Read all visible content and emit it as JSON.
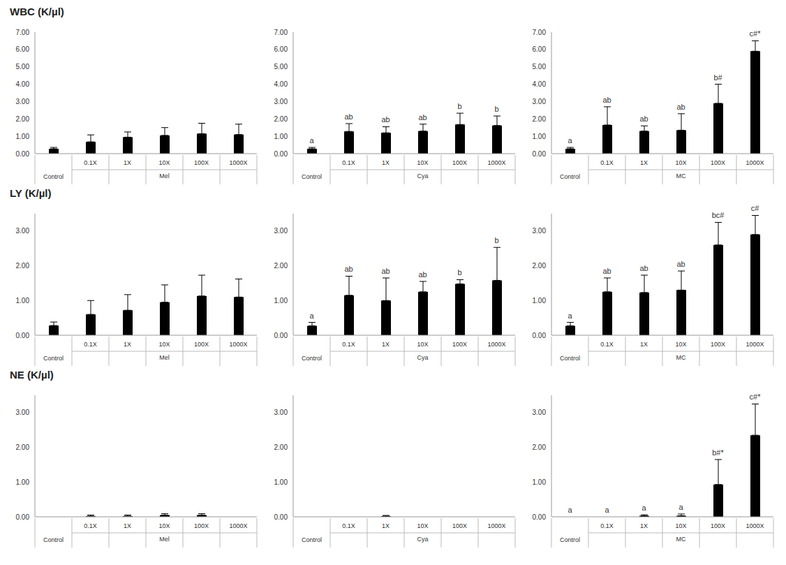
{
  "chart_data": [
    {
      "type": "bar",
      "title": "WBC (K/µl)",
      "xlabel": "Mel",
      "categories": [
        "Control",
        "0.1X",
        "1X",
        "10X",
        "100X",
        "1000X"
      ],
      "values": [
        0.28,
        0.68,
        0.95,
        1.05,
        1.15,
        1.1
      ],
      "errors": [
        0.08,
        0.4,
        0.3,
        0.45,
        0.6,
        0.6
      ],
      "color": "#000000",
      "grid": false,
      "ylim": [
        0,
        7
      ],
      "yticks": [
        {
          "value": 0,
          "label": "0.00"
        },
        {
          "value": 1,
          "label": "1.00"
        },
        {
          "value": 2,
          "label": "2.00"
        },
        {
          "value": 3,
          "label": "3.00"
        },
        {
          "value": 4,
          "label": "4.00"
        },
        {
          "value": 5,
          "label": "5.00"
        },
        {
          "value": 6,
          "label": "6.00"
        },
        {
          "value": 7,
          "label": "7.00"
        }
      ]
    },
    {
      "type": "bar",
      "xlabel": "Cya",
      "categories": [
        "Control",
        "0.1X",
        "1X",
        "10X",
        "100X",
        "1000X"
      ],
      "values": [
        0.28,
        1.28,
        1.2,
        1.3,
        1.68,
        1.62
      ],
      "errors": [
        0.08,
        0.45,
        0.35,
        0.4,
        0.65,
        0.55
      ],
      "annotations": [
        "a",
        "ab",
        "ab",
        "ab",
        "b",
        "b"
      ],
      "color": "#000000",
      "grid": false,
      "ylim": [
        0,
        7
      ],
      "yticks": [
        {
          "value": 0,
          "label": "0.00"
        },
        {
          "value": 1,
          "label": "1.00"
        },
        {
          "value": 2,
          "label": "2.00"
        },
        {
          "value": 3,
          "label": "3.00"
        },
        {
          "value": 4,
          "label": "4.00"
        },
        {
          "value": 5,
          "label": "5.00"
        },
        {
          "value": 6,
          "label": "6.00"
        },
        {
          "value": 7,
          "label": "7.00"
        }
      ]
    },
    {
      "type": "bar",
      "xlabel": "MC",
      "categories": [
        "Control",
        "0.1X",
        "1X",
        "10X",
        "100X",
        "1000X"
      ],
      "values": [
        0.28,
        1.65,
        1.3,
        1.35,
        2.9,
        5.9
      ],
      "errors": [
        0.08,
        1.05,
        0.3,
        0.95,
        1.1,
        0.6
      ],
      "annotations": [
        "a",
        "ab",
        "ab",
        "ab",
        "b#",
        "c#*"
      ],
      "color": "#000000",
      "grid": false,
      "ylim": [
        0,
        7
      ],
      "yticks": [
        {
          "value": 0,
          "label": "0.00"
        },
        {
          "value": 1,
          "label": "1.00"
        },
        {
          "value": 2,
          "label": "2.00"
        },
        {
          "value": 3,
          "label": "3.00"
        },
        {
          "value": 4,
          "label": "4.00"
        },
        {
          "value": 5,
          "label": "5.00"
        },
        {
          "value": 6,
          "label": "6.00"
        },
        {
          "value": 7,
          "label": "7.00"
        }
      ]
    },
    {
      "type": "bar",
      "title": "LY (K/µl)",
      "xlabel": "Mel",
      "categories": [
        "Control",
        "0.1X",
        "1X",
        "10X",
        "100X",
        "1000X"
      ],
      "values": [
        0.28,
        0.6,
        0.72,
        0.95,
        1.13,
        1.1
      ],
      "errors": [
        0.1,
        0.4,
        0.45,
        0.5,
        0.6,
        0.52
      ],
      "color": "#000000",
      "grid": false,
      "ylim": [
        0,
        3.5
      ],
      "yticks": [
        {
          "value": 0,
          "label": "0.00"
        },
        {
          "value": 1,
          "label": "1.00"
        },
        {
          "value": 2,
          "label": "2.00"
        },
        {
          "value": 3,
          "label": "3.00"
        }
      ]
    },
    {
      "type": "bar",
      "xlabel": "Cya",
      "categories": [
        "Control",
        "0.1X",
        "1X",
        "10X",
        "100X",
        "1000X"
      ],
      "values": [
        0.27,
        1.15,
        1.0,
        1.25,
        1.48,
        1.58
      ],
      "errors": [
        0.1,
        0.55,
        0.65,
        0.3,
        0.12,
        0.95
      ],
      "annotations": [
        "a",
        "ab",
        "ab",
        "ab",
        "b",
        "b"
      ],
      "color": "#000000",
      "grid": false,
      "ylim": [
        0,
        3.5
      ],
      "yticks": [
        {
          "value": 0,
          "label": "0.00"
        },
        {
          "value": 1,
          "label": "1.00"
        },
        {
          "value": 2,
          "label": "2.00"
        },
        {
          "value": 3,
          "label": "3.00"
        }
      ]
    },
    {
      "type": "bar",
      "xlabel": "MC",
      "categories": [
        "Control",
        "0.1X",
        "1X",
        "10X",
        "100X",
        "1000X"
      ],
      "values": [
        0.27,
        1.25,
        1.23,
        1.3,
        2.6,
        2.9
      ],
      "errors": [
        0.1,
        0.4,
        0.5,
        0.55,
        0.65,
        0.55
      ],
      "annotations": [
        "a",
        "ab",
        "ab",
        "ab",
        "bc#",
        "c#"
      ],
      "color": "#000000",
      "grid": false,
      "ylim": [
        0,
        3.5
      ],
      "yticks": [
        {
          "value": 0,
          "label": "0.00"
        },
        {
          "value": 1,
          "label": "1.00"
        },
        {
          "value": 2,
          "label": "2.00"
        },
        {
          "value": 3,
          "label": "3.00"
        }
      ]
    },
    {
      "type": "bar",
      "title": "NE (K/µl)",
      "xlabel": "Mel",
      "categories": [
        "Control",
        "0.1X",
        "1X",
        "10X",
        "100X",
        "1000X"
      ],
      "values": [
        0,
        0.02,
        0.02,
        0.05,
        0.05,
        0
      ],
      "errors": [
        0,
        0.03,
        0.03,
        0.04,
        0.04,
        0
      ],
      "color": "#000000",
      "grid": false,
      "ylim": [
        0,
        3.5
      ],
      "yticks": [
        {
          "value": 0,
          "label": "0.00"
        },
        {
          "value": 1,
          "label": "1.00"
        },
        {
          "value": 2,
          "label": "2.00"
        },
        {
          "value": 3,
          "label": "3.00"
        }
      ]
    },
    {
      "type": "bar",
      "xlabel": "Cya",
      "categories": [
        "Control",
        "0.1X",
        "1X",
        "10X",
        "100X",
        "1000X"
      ],
      "values": [
        0,
        0,
        0.02,
        0,
        0,
        0
      ],
      "errors": [
        0,
        0,
        0.02,
        0,
        0,
        0
      ],
      "color": "#000000",
      "grid": false,
      "ylim": [
        0,
        3.5
      ],
      "yticks": [
        {
          "value": 0,
          "label": "0.00"
        },
        {
          "value": 1,
          "label": "1.00"
        },
        {
          "value": 2,
          "label": "2.00"
        },
        {
          "value": 3,
          "label": "3.00"
        }
      ]
    },
    {
      "type": "bar",
      "xlabel": "MC",
      "categories": [
        "Control",
        "0.1X",
        "1X",
        "10X",
        "100X",
        "1000X"
      ],
      "values": [
        0,
        0,
        0.03,
        0.03,
        0.93,
        2.35
      ],
      "errors": [
        0,
        0,
        0.03,
        0.05,
        0.72,
        0.9
      ],
      "annotations": [
        "a",
        "a",
        "a",
        "a",
        "b#*",
        "c#*"
      ],
      "color": "#000000",
      "grid": false,
      "ylim": [
        0,
        3.5
      ],
      "yticks": [
        {
          "value": 0,
          "label": "0.00"
        },
        {
          "value": 1,
          "label": "1.00"
        },
        {
          "value": 2,
          "label": "2.00"
        },
        {
          "value": 3,
          "label": "3.00"
        }
      ]
    }
  ]
}
